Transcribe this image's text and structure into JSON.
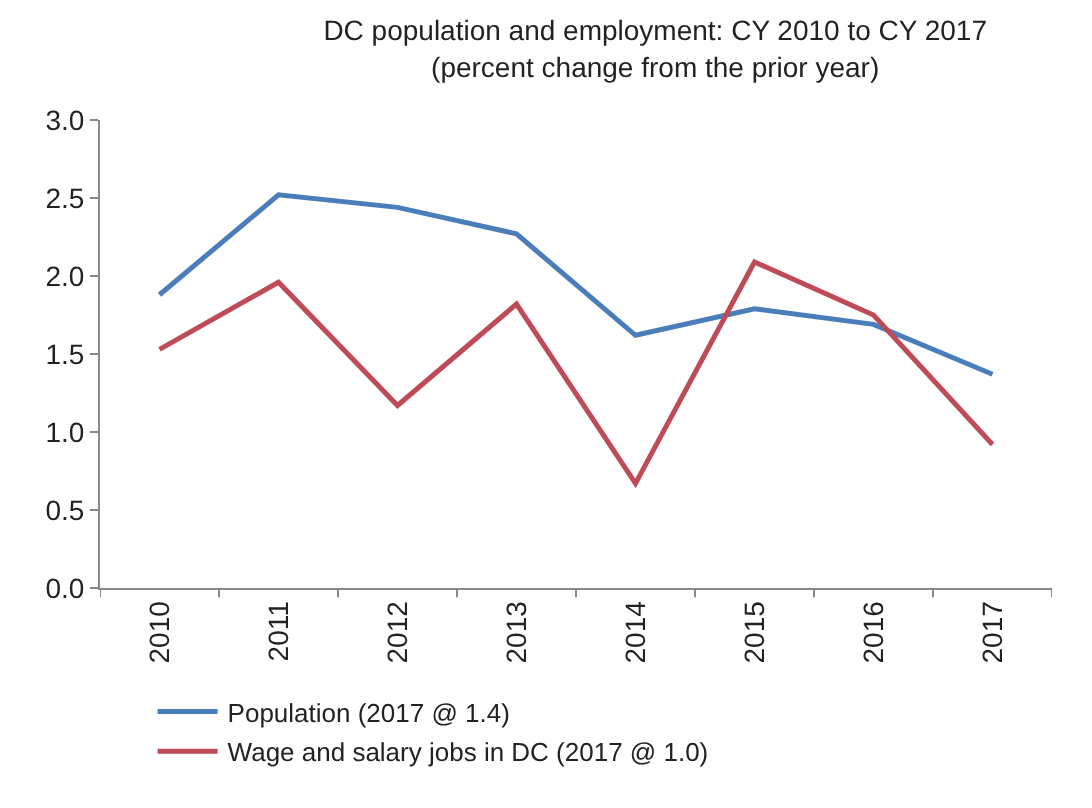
{
  "chart_data": {
    "type": "line",
    "title": "DC population and employment: CY 2010 to CY 2017",
    "subtitle": "(percent change from the prior year)",
    "categories": [
      "2010",
      "2011",
      "2012",
      "2013",
      "2014",
      "2015",
      "2016",
      "2017"
    ],
    "series": [
      {
        "name": "Population (2017 @ 1.4)",
        "color": "#4a7ebb",
        "values": [
          1.88,
          2.52,
          2.44,
          2.27,
          1.62,
          1.79,
          1.69,
          1.37
        ]
      },
      {
        "name": "Wage and salary jobs in DC (2017 @ 1.0)",
        "color": "#be4b56",
        "values": [
          1.53,
          1.96,
          1.17,
          1.82,
          0.67,
          2.09,
          1.75,
          0.92
        ]
      }
    ],
    "ylim": [
      0,
      3
    ],
    "yticks": [
      {
        "value": 0,
        "label": "0.0"
      },
      {
        "value": 0.5,
        "label": "0.5"
      },
      {
        "value": 1,
        "label": "1.0"
      },
      {
        "value": 1.5,
        "label": "1.5"
      },
      {
        "value": 2,
        "label": "2.0"
      },
      {
        "value": 2.5,
        "label": "2.5"
      },
      {
        "value": 3,
        "label": "3.0"
      }
    ],
    "legend": "bottom",
    "marker": "none",
    "line_style": "solid"
  }
}
